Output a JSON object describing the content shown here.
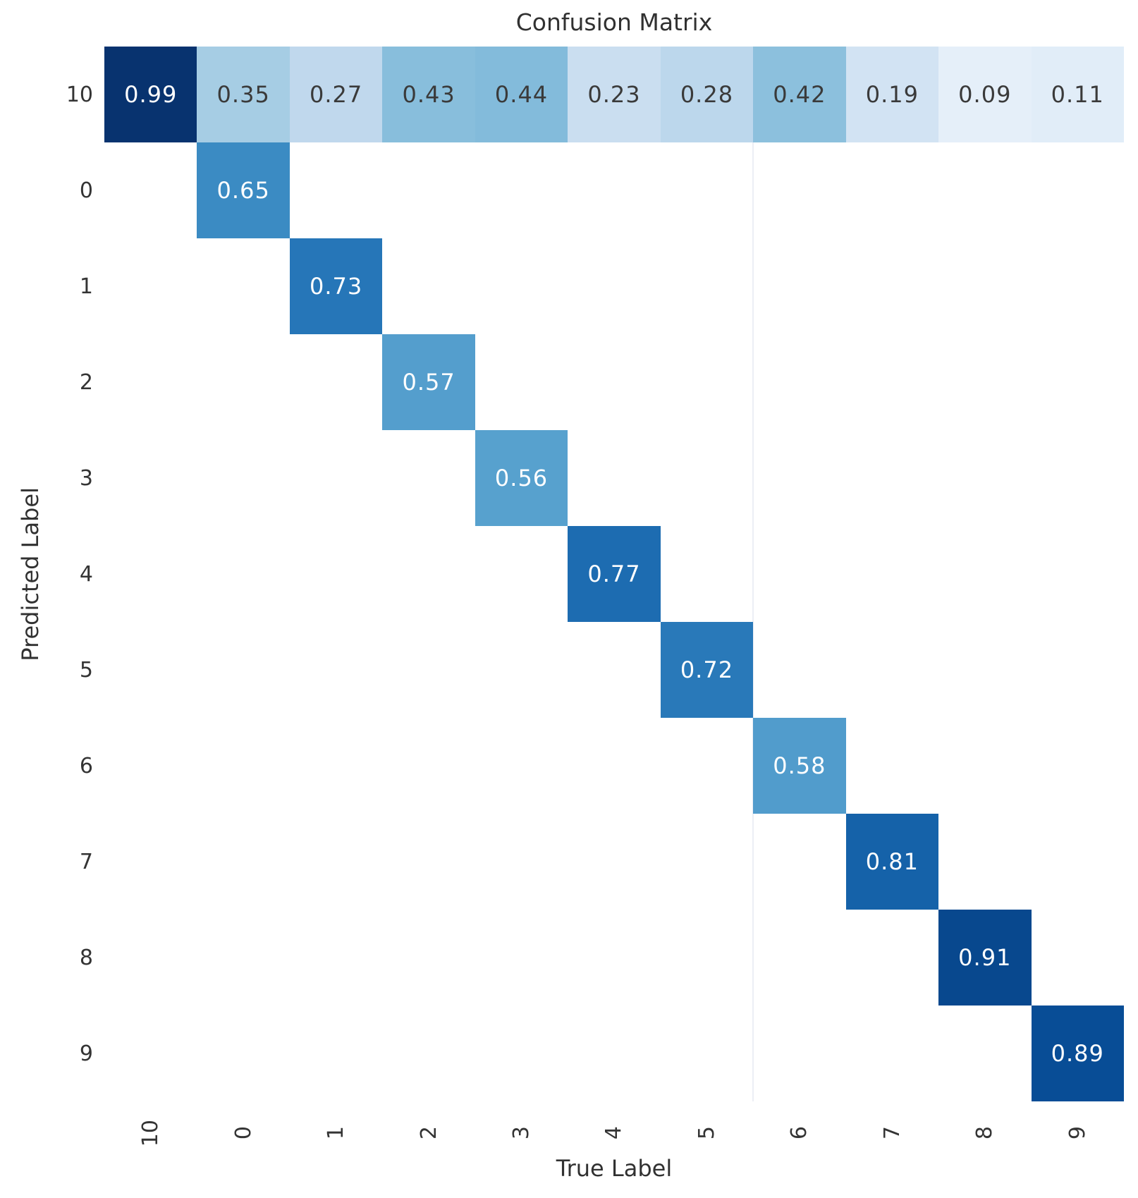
{
  "chart_data": {
    "type": "heatmap",
    "title": "Confusion Matrix",
    "xlabel": "True Label",
    "ylabel": "Predicted Label",
    "x_tick_labels": [
      "10",
      "0",
      "1",
      "2",
      "3",
      "4",
      "5",
      "6",
      "7",
      "8",
      "9"
    ],
    "y_tick_labels": [
      "10",
      "0",
      "1",
      "2",
      "3",
      "4",
      "5",
      "6",
      "7",
      "8",
      "9"
    ],
    "x_tick_rotation_deg": 90,
    "grid": false,
    "vmin": 0,
    "vmax": 1,
    "value_format_decimals": 2,
    "matrix": [
      [
        0.99,
        0.35,
        0.27,
        0.43,
        0.44,
        0.23,
        0.28,
        0.42,
        0.19,
        0.09,
        0.11
      ],
      [
        null,
        0.65,
        null,
        null,
        null,
        null,
        null,
        null,
        null,
        null,
        null
      ],
      [
        null,
        null,
        0.73,
        null,
        null,
        null,
        null,
        null,
        null,
        null,
        null
      ],
      [
        null,
        null,
        null,
        0.57,
        null,
        null,
        null,
        null,
        null,
        null,
        null
      ],
      [
        null,
        null,
        null,
        null,
        0.56,
        null,
        null,
        null,
        null,
        null,
        null
      ],
      [
        null,
        null,
        null,
        null,
        null,
        0.77,
        null,
        null,
        null,
        null,
        null
      ],
      [
        null,
        null,
        null,
        null,
        null,
        null,
        0.72,
        null,
        null,
        null,
        null
      ],
      [
        null,
        null,
        null,
        null,
        null,
        null,
        null,
        0.58,
        null,
        null,
        null
      ],
      [
        null,
        null,
        null,
        null,
        null,
        null,
        null,
        null,
        0.81,
        null,
        null
      ],
      [
        null,
        null,
        null,
        null,
        null,
        null,
        null,
        null,
        null,
        0.91,
        null
      ],
      [
        null,
        null,
        null,
        null,
        null,
        null,
        null,
        null,
        null,
        null,
        0.89
      ]
    ],
    "colormap": {
      "name": "Blues",
      "stops": [
        "#f7fbff",
        "#deebf7",
        "#c6dbef",
        "#9ecae1",
        "#6baed6",
        "#4292c6",
        "#2171b5",
        "#08519c",
        "#08306b"
      ]
    },
    "colors": {
      "empty_cell": "#ffffff",
      "annot_dark": "#3a3a3a",
      "annot_light": "#ffffff",
      "text": "#313131"
    },
    "annot_luminance_threshold": 0.408,
    "seam_column_boundary_index": 7
  }
}
